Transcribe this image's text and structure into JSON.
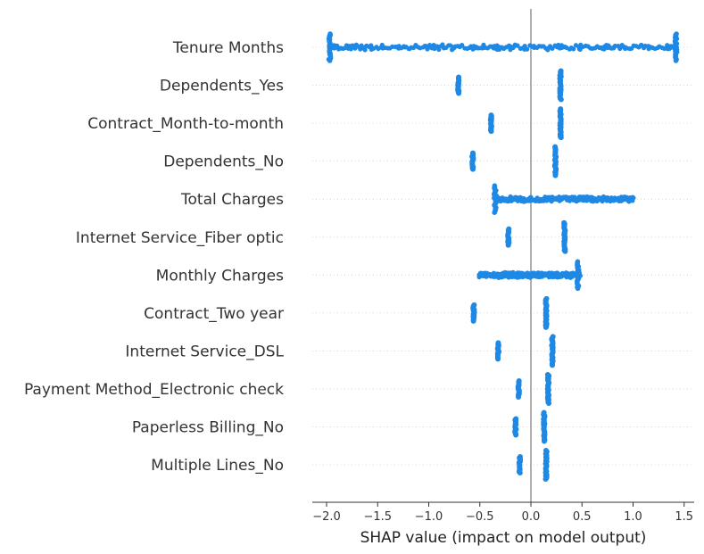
{
  "chart_data": {
    "type": "scatter",
    "subtype": "shap-beeswarm",
    "title": "",
    "xlabel": "SHAP value (impact on model output)",
    "ylabel": "",
    "xlim": [
      -2.15,
      1.58
    ],
    "xticks": [
      -2.0,
      -1.5,
      -1.0,
      -0.5,
      0.0,
      0.5,
      1.0,
      1.5
    ],
    "xtick_labels": [
      "−2.0",
      "−1.5",
      "−1.0",
      "−0.5",
      "0.0",
      "0.5",
      "1.0",
      "1.5"
    ],
    "point_color": "#1e88e5",
    "grid": false,
    "features": [
      {
        "name": "Tenure Months",
        "kind": "continuous",
        "range": [
          -1.97,
          1.42
        ],
        "pile_at": [
          -1.97,
          1.42
        ]
      },
      {
        "name": "Dependents_Yes",
        "kind": "binary",
        "clusters": [
          -0.71,
          0.29
        ]
      },
      {
        "name": "Contract_Month-to-month",
        "kind": "binary",
        "clusters": [
          -0.39,
          0.29
        ]
      },
      {
        "name": "Dependents_No",
        "kind": "binary",
        "clusters": [
          -0.57,
          0.24
        ]
      },
      {
        "name": "Total Charges",
        "kind": "continuous",
        "range": [
          -0.35,
          1.0
        ],
        "pile_at": [
          -0.35
        ]
      },
      {
        "name": "Internet Service_Fiber optic",
        "kind": "binary",
        "clusters": [
          -0.22,
          0.33
        ]
      },
      {
        "name": "Monthly Charges",
        "kind": "continuous",
        "range": [
          -0.51,
          0.48
        ],
        "pile_at": [
          0.46
        ]
      },
      {
        "name": "Contract_Two year",
        "kind": "binary",
        "clusters": [
          -0.56,
          0.15
        ]
      },
      {
        "name": "Internet Service_DSL",
        "kind": "binary",
        "clusters": [
          -0.32,
          0.21
        ]
      },
      {
        "name": "Payment Method_Electronic check",
        "kind": "binary",
        "clusters": [
          -0.12,
          0.17
        ]
      },
      {
        "name": "Paperless Billing_No",
        "kind": "binary",
        "clusters": [
          -0.15,
          0.13
        ]
      },
      {
        "name": "Multiple Lines_No",
        "kind": "binary",
        "clusters": [
          -0.11,
          0.15
        ]
      }
    ]
  }
}
